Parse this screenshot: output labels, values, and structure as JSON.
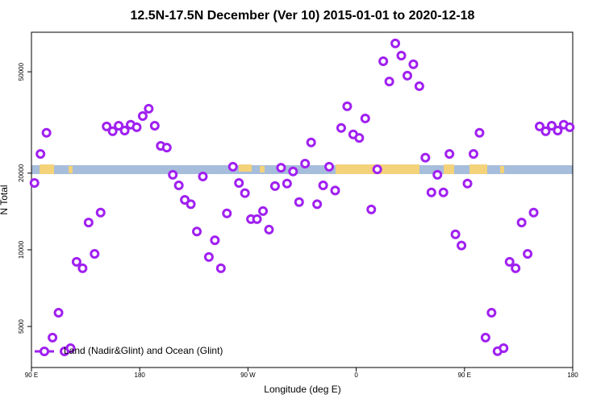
{
  "chart_data": {
    "type": "scatter",
    "title": "12.5N-17.5N December (Ver 10)   2015-01-01 to 2020-12-18",
    "xlabel": "Longitude (deg E)",
    "ylabel": "N Total",
    "ylog": true,
    "legend": "bottom-left",
    "xlim": [
      90,
      540
    ],
    "xticks": [
      {
        "value": 90,
        "label": "90 E"
      },
      180,
      {
        "value": 270,
        "label": "90 W"
      },
      {
        "value": 360,
        "label": "0"
      },
      {
        "value": 450,
        "label": "90 E"
      },
      {
        "value": 540,
        "label": "180"
      }
    ],
    "ylim": [
      3450,
      71500
    ],
    "yticks": [
      5000,
      10000,
      20000,
      50000
    ],
    "series": [
      {
        "name": "Land (Nadir&Glint) and Ocean (Glint)",
        "color": "#a020f0",
        "x": [
          92.5,
          97.5,
          102.5,
          107.5,
          112.5,
          117.5,
          122.5,
          127.5,
          132.5,
          137.5,
          142.5,
          147.5,
          152.5,
          157.5,
          162.5,
          167.5,
          172.5,
          177.5,
          182.5,
          187.5,
          192.5,
          197.5,
          202.5,
          207.5,
          212.5,
          217.5,
          222.5,
          227.5,
          232.5,
          237.5,
          242.5,
          247.5,
          252.5,
          257.5,
          262.5,
          267.5,
          272.5,
          277.5,
          282.5,
          287.5,
          292.5,
          297.5,
          302.5,
          307.5,
          312.5,
          317.5,
          322.5,
          327.5,
          332.5,
          337.5,
          342.5,
          347.5,
          352.5,
          357.5,
          362.5,
          367.5,
          372.5,
          377.5,
          382.5,
          387.5,
          392.5,
          397.5,
          402.5,
          407.5,
          412.5,
          417.5,
          422.5,
          427.5,
          432.5,
          437.5,
          442.5,
          447.5,
          452.5,
          457.5,
          462.5,
          467.5,
          472.5,
          477.5,
          482.5,
          487.5,
          492.5,
          497.5,
          502.5,
          507.5,
          512.5,
          517.5,
          522.5,
          527.5,
          532.5,
          537.5
        ],
        "values": [
          18300,
          23800,
          28800,
          4520,
          5660,
          3990,
          4110,
          8970,
          8460,
          12800,
          9640,
          14000,
          30500,
          29200,
          30700,
          29400,
          31000,
          30300,
          33500,
          35800,
          30700,
          25600,
          25200,
          19700,
          17900,
          15700,
          15100,
          11800,
          19400,
          9370,
          10900,
          8460,
          13900,
          21200,
          18300,
          16700,
          13200,
          13200,
          14200,
          12000,
          17800,
          21000,
          18200,
          20300,
          15400,
          21800,
          26400,
          15100,
          17900,
          21200,
          17100,
          30100,
          36600,
          28400,
          27500,
          32800,
          14400,
          20700,
          55000,
          45800,
          64600,
          57900,
          48300,
          53500,
          43900,
          23000,
          16800,
          19700,
          16800,
          23800,
          11500,
          10400,
          18200,
          23800,
          28800,
          4520,
          5660,
          4000,
          4110,
          8970,
          8460,
          12800,
          9640,
          14000,
          30500,
          29200,
          30700,
          29400,
          31000,
          30300
        ]
      }
    ]
  }
}
